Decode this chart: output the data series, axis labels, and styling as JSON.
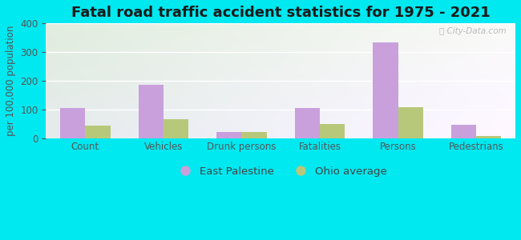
{
  "title": "Fatal road traffic accident statistics for 1975 - 2021",
  "ylabel": "per 100,000 population",
  "categories": [
    "Count",
    "Vehicles",
    "Drunk persons",
    "Fatalities",
    "Persons",
    "Pedestrians"
  ],
  "east_palestine": [
    105,
    187,
    22,
    105,
    333,
    47
  ],
  "ohio_average": [
    43,
    67,
    20,
    48,
    107,
    6
  ],
  "east_palestine_color": "#c9a0dc",
  "ohio_average_color": "#b8c87a",
  "background_outer": "#00e8f0",
  "ylim": [
    0,
    400
  ],
  "yticks": [
    0,
    100,
    200,
    300,
    400
  ],
  "bar_width": 0.32,
  "title_fontsize": 13,
  "axis_label_fontsize": 8.5,
  "tick_fontsize": 8.5,
  "legend_fontsize": 9.5,
  "watermark": "City-Data.com"
}
